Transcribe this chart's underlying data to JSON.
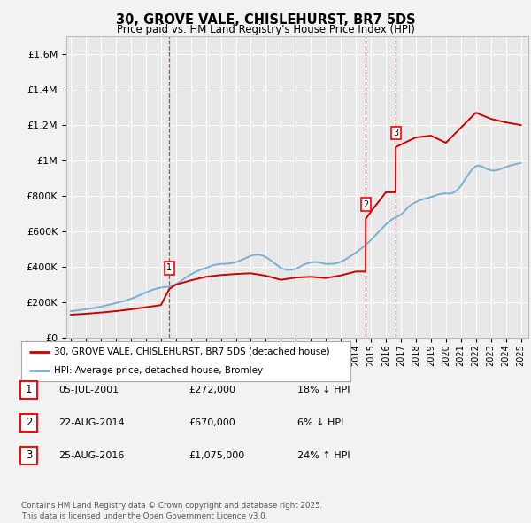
{
  "title": "30, GROVE VALE, CHISLEHURST, BR7 5DS",
  "subtitle": "Price paid vs. HM Land Registry's House Price Index (HPI)",
  "background_color": "#f2f2f2",
  "plot_background": "#e8e8e8",
  "grid_color": "#ffffff",
  "red_color": "#cc0000",
  "blue_color": "#7bafd4",
  "ylim": [
    0,
    1700000
  ],
  "yticks": [
    0,
    200000,
    400000,
    600000,
    800000,
    1000000,
    1200000,
    1400000,
    1600000
  ],
  "ytick_labels": [
    "£0",
    "£200K",
    "£400K",
    "£600K",
    "£800K",
    "£1M",
    "£1.2M",
    "£1.4M",
    "£1.6M"
  ],
  "legend_line1": "30, GROVE VALE, CHISLEHURST, BR7 5DS (detached house)",
  "legend_line2": "HPI: Average price, detached house, Bromley",
  "footer": "Contains HM Land Registry data © Crown copyright and database right 2025.\nThis data is licensed under the Open Government Licence v3.0.",
  "transaction1": {
    "num": "1",
    "date": "05-JUL-2001",
    "price": "£272,000",
    "hpi": "18% ↓ HPI",
    "year": 2001.55,
    "price_val": 272000
  },
  "transaction2": {
    "num": "2",
    "date": "22-AUG-2014",
    "price": "£670,000",
    "hpi": "6% ↓ HPI",
    "year": 2014.65,
    "price_val": 670000
  },
  "transaction3": {
    "num": "3",
    "date": "25-AUG-2016",
    "price": "£1,075,000",
    "hpi": "24% ↑ HPI",
    "year": 2016.65,
    "price_val": 1075000
  },
  "hpi_data": {
    "years": [
      1995.0,
      1995.25,
      1995.5,
      1995.75,
      1996.0,
      1996.25,
      1996.5,
      1996.75,
      1997.0,
      1997.25,
      1997.5,
      1997.75,
      1998.0,
      1998.25,
      1998.5,
      1998.75,
      1999.0,
      1999.25,
      1999.5,
      1999.75,
      2000.0,
      2000.25,
      2000.5,
      2000.75,
      2001.0,
      2001.25,
      2001.5,
      2001.75,
      2002.0,
      2002.25,
      2002.5,
      2002.75,
      2003.0,
      2003.25,
      2003.5,
      2003.75,
      2004.0,
      2004.25,
      2004.5,
      2004.75,
      2005.0,
      2005.25,
      2005.5,
      2005.75,
      2006.0,
      2006.25,
      2006.5,
      2006.75,
      2007.0,
      2007.25,
      2007.5,
      2007.75,
      2008.0,
      2008.25,
      2008.5,
      2008.75,
      2009.0,
      2009.25,
      2009.5,
      2009.75,
      2010.0,
      2010.25,
      2010.5,
      2010.75,
      2011.0,
      2011.25,
      2011.5,
      2011.75,
      2012.0,
      2012.25,
      2012.5,
      2012.75,
      2013.0,
      2013.25,
      2013.5,
      2013.75,
      2014.0,
      2014.25,
      2014.5,
      2014.75,
      2015.0,
      2015.25,
      2015.5,
      2015.75,
      2016.0,
      2016.25,
      2016.5,
      2016.75,
      2017.0,
      2017.25,
      2017.5,
      2017.75,
      2018.0,
      2018.25,
      2018.5,
      2018.75,
      2019.0,
      2019.25,
      2019.5,
      2019.75,
      2020.0,
      2020.25,
      2020.5,
      2020.75,
      2021.0,
      2021.25,
      2021.5,
      2021.75,
      2022.0,
      2022.25,
      2022.5,
      2022.75,
      2023.0,
      2023.25,
      2023.5,
      2023.75,
      2024.0,
      2024.25,
      2024.5,
      2024.75,
      2025.0
    ],
    "values": [
      148000,
      150000,
      153000,
      156000,
      159000,
      162000,
      165000,
      169000,
      173000,
      178000,
      183000,
      188000,
      194000,
      199000,
      204000,
      210000,
      218000,
      226000,
      235000,
      245000,
      254000,
      262000,
      270000,
      276000,
      281000,
      284000,
      286000,
      291000,
      300000,
      313000,
      328000,
      343000,
      356000,
      367000,
      377000,
      385000,
      392000,
      400000,
      408000,
      412000,
      415000,
      416000,
      417000,
      420000,
      425000,
      433000,
      442000,
      452000,
      461000,
      466000,
      468000,
      463000,
      454000,
      440000,
      424000,
      408000,
      393000,
      385000,
      381000,
      382000,
      388000,
      398000,
      410000,
      418000,
      424000,
      426000,
      424000,
      420000,
      415000,
      415000,
      416000,
      420000,
      427000,
      438000,
      451000,
      465000,
      479000,
      495000,
      512000,
      530000,
      550000,
      572000,
      594000,
      616000,
      638000,
      657000,
      672000,
      683000,
      693000,
      714000,
      737000,
      753000,
      764000,
      774000,
      781000,
      787000,
      793000,
      800000,
      807000,
      812000,
      814000,
      812000,
      818000,
      832000,
      856000,
      888000,
      920000,
      950000,
      968000,
      971000,
      962000,
      951000,
      944000,
      943000,
      947000,
      955000,
      963000,
      970000,
      976000,
      981000,
      985000
    ]
  },
  "price_data": {
    "years": [
      1995.0,
      1996.0,
      1997.0,
      1998.0,
      1999.0,
      2000.0,
      2001.0,
      2001.55,
      2002.0,
      2003.0,
      2004.0,
      2005.0,
      2006.0,
      2007.0,
      2008.0,
      2009.0,
      2010.0,
      2011.0,
      2012.0,
      2013.0,
      2014.0,
      2014.65,
      2014.66,
      2015.0,
      2016.0,
      2016.65,
      2016.66,
      2017.0,
      2018.0,
      2019.0,
      2020.0,
      2021.0,
      2022.0,
      2023.0,
      2024.0,
      2025.0
    ],
    "values": [
      128000,
      133000,
      140000,
      148000,
      158000,
      170000,
      182000,
      272000,
      298000,
      322000,
      342000,
      352000,
      358000,
      362000,
      348000,
      325000,
      338000,
      342000,
      335000,
      350000,
      372000,
      372000,
      670000,
      710000,
      820000,
      820000,
      1075000,
      1090000,
      1130000,
      1140000,
      1100000,
      1185000,
      1270000,
      1235000,
      1215000,
      1200000
    ]
  },
  "xmin": 1994.7,
  "xmax": 2025.5,
  "xticks": [
    1995,
    1996,
    1997,
    1998,
    1999,
    2000,
    2001,
    2002,
    2003,
    2004,
    2005,
    2006,
    2007,
    2008,
    2009,
    2010,
    2011,
    2012,
    2013,
    2014,
    2015,
    2016,
    2017,
    2018,
    2019,
    2020,
    2021,
    2022,
    2023,
    2024,
    2025
  ]
}
